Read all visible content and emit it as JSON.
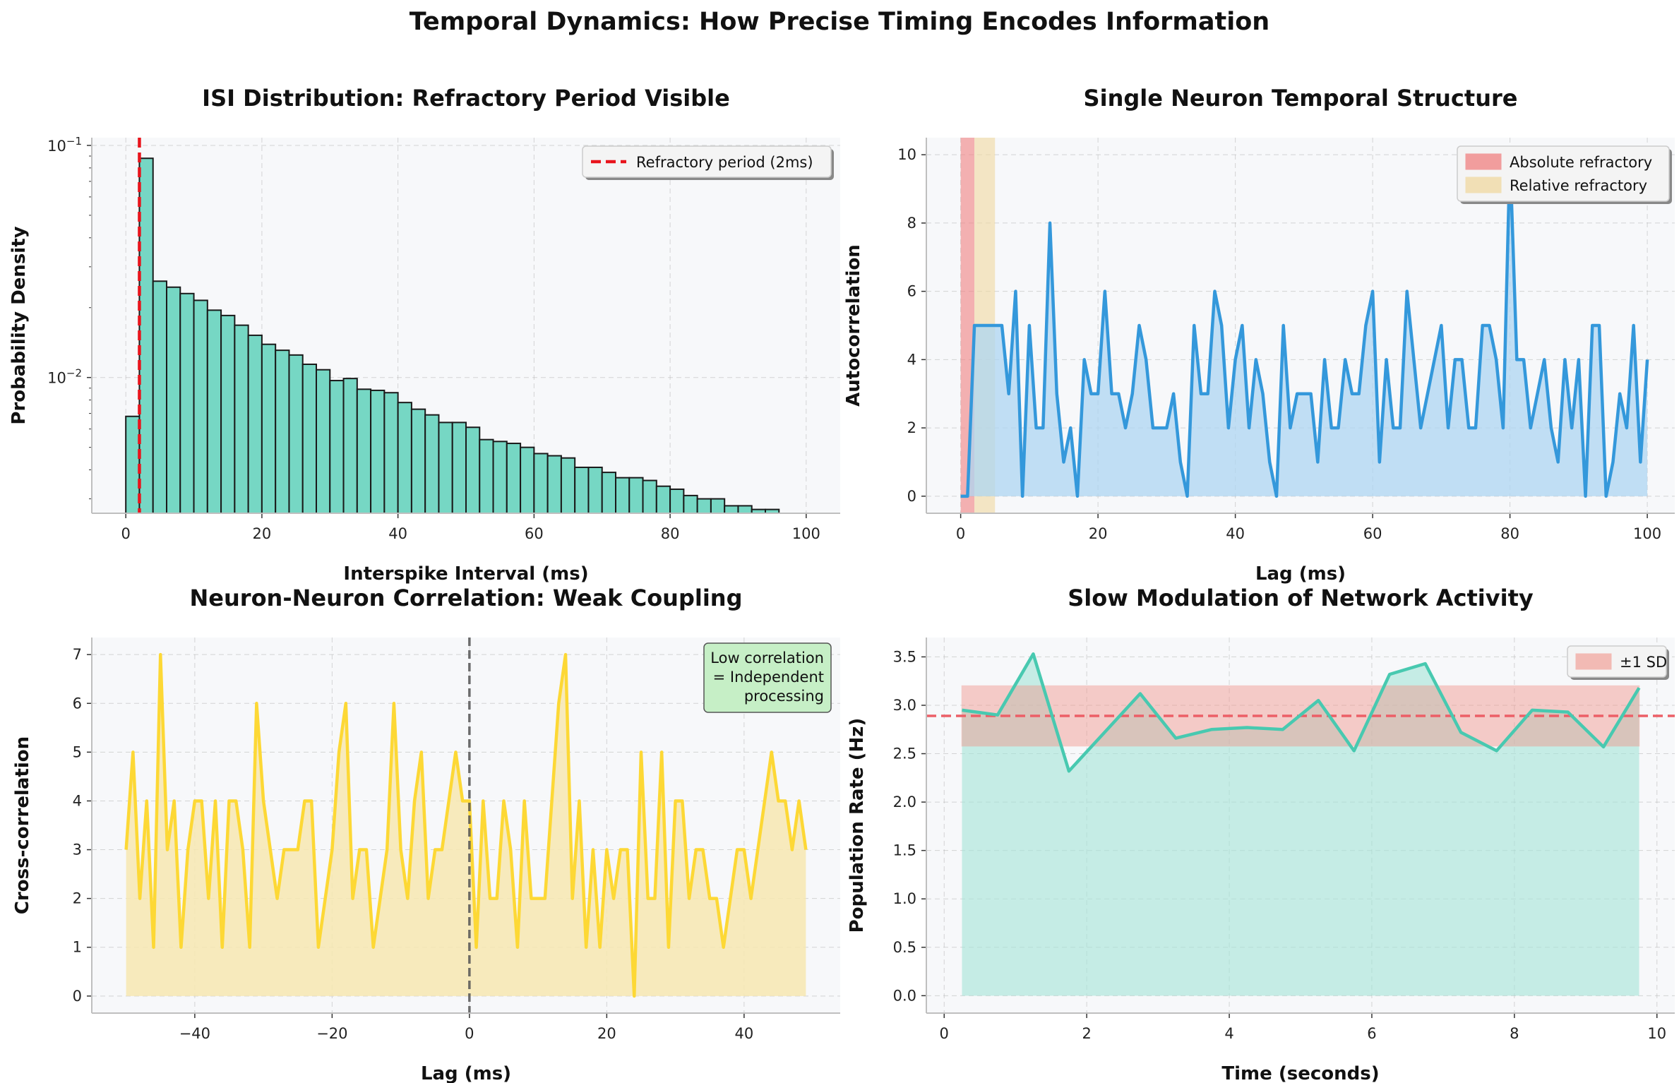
{
  "figure": {
    "suptitle": "Temporal Dynamics: How Precise Timing Encodes Information"
  },
  "chart_data": [
    {
      "id": "isi",
      "type": "bar",
      "title": "ISI Distribution: Refractory Period Visible",
      "xlabel": "Interspike Interval (ms)",
      "ylabel": "Probability Density",
      "xlim": [
        -5,
        105
      ],
      "ylim": [
        0.0026,
        0.108
      ],
      "yscale": "log",
      "xticks": [
        0,
        20,
        40,
        60,
        80,
        100
      ],
      "yticks": [
        {
          "v": 0.01,
          "base": "10",
          "exp": "−2"
        },
        {
          "v": 0.1,
          "base": "10",
          "exp": "−1"
        }
      ],
      "bin_width": 2,
      "bin_start": 0,
      "values": [
        0.0068,
        0.088,
        0.026,
        0.0245,
        0.023,
        0.0215,
        0.0195,
        0.0185,
        0.0168,
        0.0152,
        0.0139,
        0.0131,
        0.0125,
        0.0114,
        0.0108,
        0.0097,
        0.0099,
        0.0089,
        0.0088,
        0.0086,
        0.0078,
        0.0073,
        0.0069,
        0.0064,
        0.0064,
        0.0061,
        0.0054,
        0.0053,
        0.0052,
        0.005,
        0.0047,
        0.0046,
        0.0045,
        0.0041,
        0.0041,
        0.0039,
        0.0037,
        0.0037,
        0.0036,
        0.0034,
        0.0033,
        0.0031,
        0.003,
        0.003,
        0.0028,
        0.0028,
        0.0027,
        0.0027,
        0.0026,
        0.0026
      ],
      "colors": {
        "bar": "#76d7c4",
        "edge": "#1a1a1a",
        "vline": "#e8141c"
      },
      "vline": {
        "x": 2,
        "label": "Refractory period (2ms)"
      },
      "grid": true,
      "legend_loc": "upper right"
    },
    {
      "id": "auto",
      "type": "line",
      "title": "Single Neuron Temporal Structure",
      "xlabel": "Lag (ms)",
      "ylabel": "Autocorrelation",
      "xlim": [
        -5,
        104
      ],
      "ylim": [
        -0.5,
        10.5
      ],
      "xticks": [
        0,
        20,
        40,
        60,
        80,
        100
      ],
      "yticks": [
        0,
        2,
        4,
        6,
        8,
        10
      ],
      "x_start": 0,
      "x_step": 1,
      "values": [
        0,
        0,
        5,
        5,
        5,
        5,
        5,
        3,
        6,
        0,
        5,
        2,
        2,
        8,
        3,
        1,
        2,
        0,
        4,
        3,
        3,
        6,
        3,
        3,
        2,
        3,
        5,
        4,
        2,
        2,
        2,
        3,
        1,
        0,
        5,
        3,
        3,
        6,
        5,
        2,
        4,
        5,
        2,
        4,
        3,
        1,
        0,
        5,
        2,
        3,
        3,
        3,
        1,
        4,
        2,
        2,
        4,
        3,
        3,
        5,
        6,
        1,
        4,
        2,
        2,
        6,
        4,
        2,
        3,
        4,
        5,
        2,
        4,
        4,
        2,
        2,
        5,
        5,
        4,
        2,
        10,
        4,
        4,
        2,
        3,
        4,
        2,
        1,
        4,
        2,
        4,
        0,
        5,
        5,
        0,
        1,
        3,
        2,
        5,
        1,
        4
      ],
      "bands": [
        {
          "name": "Absolute refractory",
          "x0": 0,
          "x1": 2,
          "color": "#f08080"
        },
        {
          "name": "Relative refractory",
          "x0": 2,
          "x1": 5,
          "color": "#f0d9a0"
        }
      ],
      "colors": {
        "line": "#3498db",
        "fill": "#aed6f1"
      },
      "grid": true,
      "legend_loc": "upper right"
    },
    {
      "id": "cross",
      "type": "line",
      "title": "Neuron-Neuron Correlation: Weak Coupling",
      "xlabel": "Lag (ms)",
      "ylabel": "Cross-correlation",
      "xlim": [
        -55,
        54
      ],
      "ylim": [
        -0.35,
        7.35
      ],
      "xticks": [
        -40,
        -20,
        0,
        20,
        40
      ],
      "yticks": [
        0,
        1,
        2,
        3,
        4,
        5,
        6,
        7
      ],
      "x_start": -50,
      "x_step": 1,
      "values": [
        3,
        5,
        2,
        4,
        1,
        7,
        3,
        4,
        1,
        3,
        4,
        4,
        2,
        4,
        1,
        4,
        4,
        3,
        1,
        6,
        4,
        3,
        2,
        3,
        3,
        3,
        4,
        4,
        1,
        2,
        3,
        5,
        6,
        2,
        3,
        3,
        1,
        2,
        3,
        6,
        3,
        2,
        4,
        5,
        2,
        3,
        3,
        4,
        5,
        4,
        4,
        1,
        4,
        2,
        2,
        4,
        3,
        1,
        4,
        2,
        2,
        2,
        4,
        6,
        7,
        2,
        4,
        1,
        3,
        1,
        3,
        2,
        3,
        3,
        0,
        5,
        2,
        2,
        5,
        1,
        4,
        4,
        2,
        3,
        3,
        2,
        2,
        1,
        2,
        3,
        3,
        2,
        3,
        4,
        5,
        4,
        4,
        3,
        4,
        3
      ],
      "vline": {
        "x": 0
      },
      "annotation": [
        "Low correlation",
        "= Independent",
        "processing"
      ],
      "colors": {
        "line": "#fdd835",
        "fill": "#f7e8b0",
        "annot_bg": "#c6efc6"
      },
      "grid": true
    },
    {
      "id": "pop",
      "type": "line",
      "title": "Slow Modulation of Network Activity",
      "xlabel": "Time (seconds)",
      "ylabel": "Population Rate (Hz)",
      "xlim": [
        -0.25,
        10.25
      ],
      "ylim": [
        -0.18,
        3.7
      ],
      "xticks": [
        0,
        2,
        4,
        6,
        8,
        10
      ],
      "yticks": [
        0.0,
        0.5,
        1.0,
        1.5,
        2.0,
        2.5,
        3.0,
        3.5
      ],
      "x": [
        0.25,
        0.75,
        1.25,
        1.75,
        2.25,
        2.75,
        3.25,
        3.75,
        4.25,
        4.75,
        5.25,
        5.75,
        6.25,
        6.75,
        7.25,
        7.75,
        8.25,
        8.75,
        9.25,
        9.75
      ],
      "values": [
        2.95,
        2.9,
        3.53,
        2.32,
        2.72,
        3.12,
        2.66,
        2.75,
        2.77,
        2.75,
        3.05,
        2.53,
        3.32,
        3.43,
        2.72,
        2.53,
        2.95,
        2.93,
        2.57,
        3.18
      ],
      "mean": 2.89,
      "band": {
        "name": "±1 SD",
        "low": 2.58,
        "high": 3.2
      },
      "colors": {
        "line": "#48c9b0",
        "fill": "#a3e4d7",
        "band": "#f1948a",
        "mean": "#ec5f67"
      },
      "grid": true,
      "legend_loc": "upper right"
    }
  ]
}
